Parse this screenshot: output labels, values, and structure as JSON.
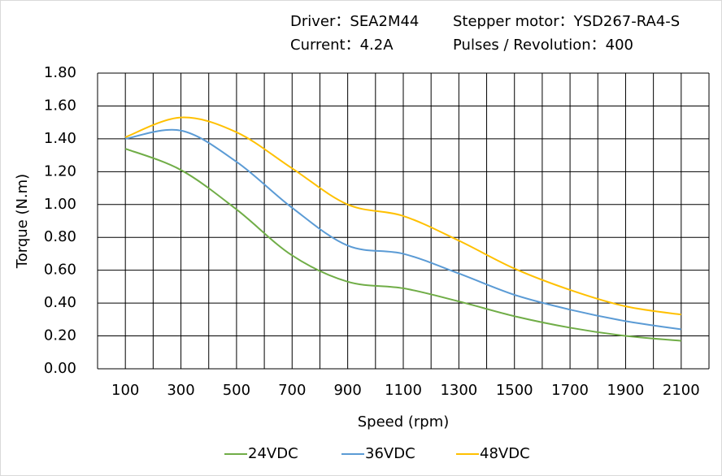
{
  "chart_data": {
    "type": "line",
    "annotations": [
      "Driver：SEA2M44",
      "Stepper motor：YSD267-RA4-S",
      "Current：4.2A",
      "Pulses / Revolution：400"
    ],
    "x_label": "Speed (rpm)",
    "y_label": "Torque (N.m)",
    "x": [
      100,
      300,
      500,
      700,
      900,
      1100,
      1300,
      1500,
      1700,
      1900,
      2100
    ],
    "series": [
      {
        "name": "24VDC",
        "color": "#70ad47",
        "values": [
          1.34,
          1.21,
          0.97,
          0.69,
          0.53,
          0.49,
          0.41,
          0.32,
          0.25,
          0.2,
          0.17
        ]
      },
      {
        "name": "36VDC",
        "color": "#5b9bd5",
        "values": [
          1.4,
          1.45,
          1.26,
          0.98,
          0.75,
          0.7,
          0.58,
          0.45,
          0.36,
          0.29,
          0.24
        ]
      },
      {
        "name": "48VDC",
        "color": "#ffc000",
        "values": [
          1.41,
          1.53,
          1.44,
          1.22,
          1.0,
          0.93,
          0.78,
          0.61,
          0.48,
          0.38,
          0.33
        ]
      }
    ],
    "xlim": [
      0,
      2200
    ],
    "xticks": [
      100,
      300,
      500,
      700,
      900,
      1100,
      1300,
      1500,
      1700,
      1900,
      2100
    ],
    "xgridticks": [
      0,
      200,
      400,
      600,
      800,
      1000,
      1200,
      1400,
      1600,
      1800,
      2000,
      2200
    ],
    "ylim": [
      0,
      1.8
    ],
    "yticks": [
      {
        "value": 0,
        "label": "0.00"
      },
      {
        "value": 0.2,
        "label": "0.20"
      },
      {
        "value": 0.4,
        "label": "0.40"
      },
      {
        "value": 0.6,
        "label": "0.60"
      },
      {
        "value": 0.8,
        "label": "0.80"
      },
      {
        "value": 1.0,
        "label": "1.00"
      },
      {
        "value": 1.2,
        "label": "1.20"
      },
      {
        "value": 1.4,
        "label": "1.40"
      },
      {
        "value": 1.6,
        "label": "1.60"
      },
      {
        "value": 1.8,
        "label": "1.80"
      }
    ],
    "grid": true,
    "smooth": true,
    "legend": "bottom"
  }
}
